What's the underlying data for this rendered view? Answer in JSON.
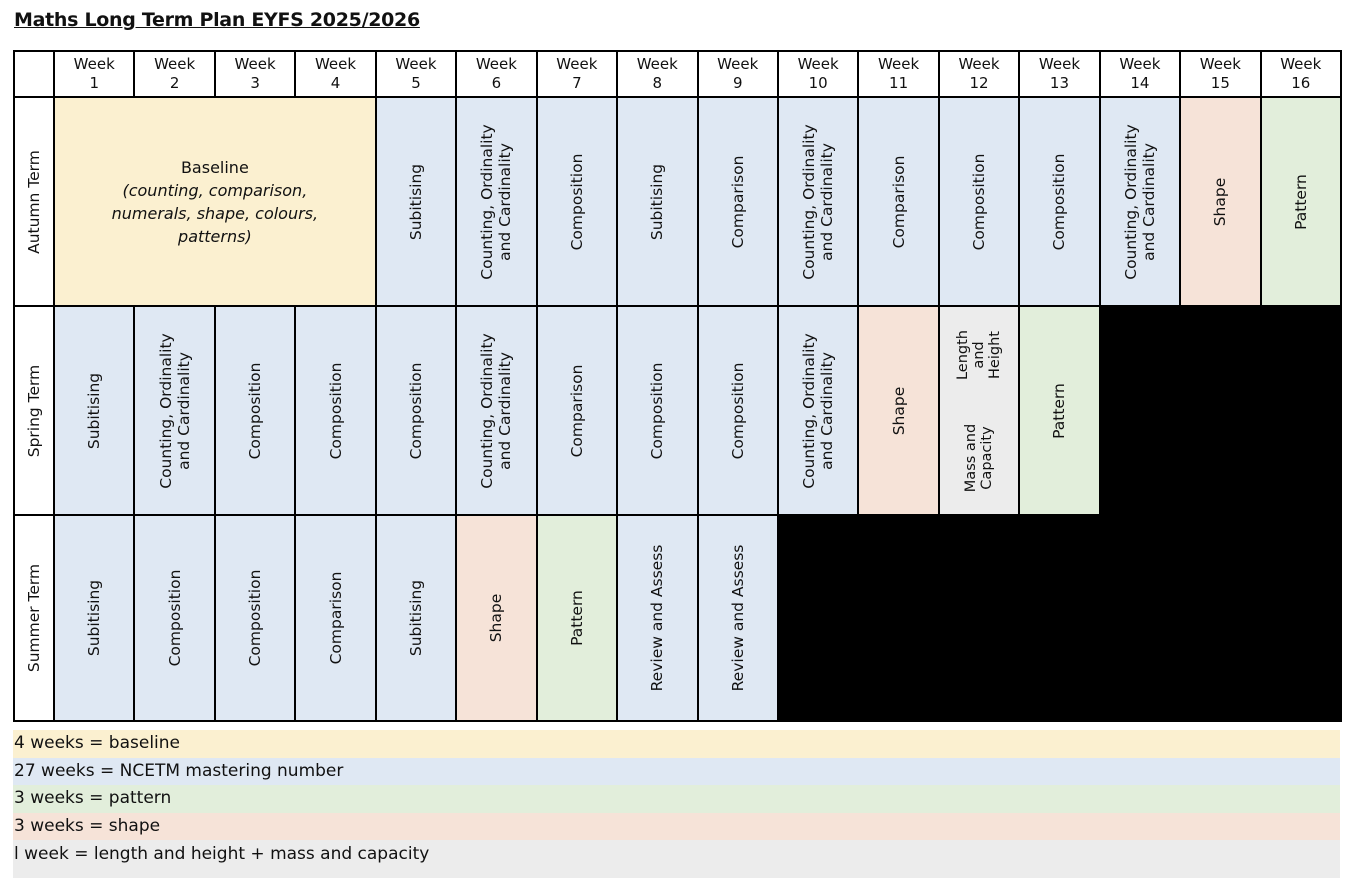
{
  "title": "Maths Long Term Plan EYFS 2025/2026",
  "weeks": [
    "Week 1",
    "Week 2",
    "Week 3",
    "Week 4",
    "Week 5",
    "Week 6",
    "Week 7",
    "Week 8",
    "Week 9",
    "Week 10",
    "Week 11",
    "Week 12",
    "Week 13",
    "Week 14",
    "Week 15",
    "Week 16"
  ],
  "week_word": "Week",
  "week_numbers": [
    "1",
    "2",
    "3",
    "4",
    "5",
    "6",
    "7",
    "8",
    "9",
    "10",
    "11",
    "12",
    "13",
    "14",
    "15",
    "16"
  ],
  "colors": {
    "baseline": "#fbf0d0",
    "number": "#dfe8f3",
    "pattern": "#e2eedb",
    "shape": "#f6e3d8",
    "measure": "#ececec",
    "unused": "#000000"
  },
  "terms": [
    {
      "label": "Autumn Term",
      "baseline": {
        "heading": "Baseline",
        "detail_line1": "(counting, comparison,",
        "detail_line2": "numerals, shape, colours,",
        "detail_line3": "patterns)"
      },
      "cells": [
        {
          "week": 5,
          "line1": "Subitising",
          "category": "number"
        },
        {
          "week": 6,
          "line1": "Counting, Ordinality",
          "line2": "and Cardinality",
          "category": "number"
        },
        {
          "week": 7,
          "line1": "Composition",
          "category": "number"
        },
        {
          "week": 8,
          "line1": "Subitising",
          "category": "number"
        },
        {
          "week": 9,
          "line1": "Comparison",
          "category": "number"
        },
        {
          "week": 10,
          "line1": "Counting, Ordinality",
          "line2": "and Cardinality",
          "category": "number"
        },
        {
          "week": 11,
          "line1": "Comparison",
          "category": "number"
        },
        {
          "week": 12,
          "line1": "Composition",
          "category": "number"
        },
        {
          "week": 13,
          "line1": "Composition",
          "category": "number"
        },
        {
          "week": 14,
          "line1": "Counting, Ordinality",
          "line2": "and Cardinality",
          "category": "number"
        },
        {
          "week": 15,
          "line1": "Shape",
          "category": "shape"
        },
        {
          "week": 16,
          "line1": "Pattern",
          "category": "pattern"
        }
      ]
    },
    {
      "label": "Spring Term",
      "cells": [
        {
          "week": 1,
          "line1": "Subitising",
          "category": "number"
        },
        {
          "week": 2,
          "line1": "Counting, Ordinality",
          "line2": "and Cardinality",
          "category": "number"
        },
        {
          "week": 3,
          "line1": "Composition",
          "category": "number"
        },
        {
          "week": 4,
          "line1": "Composition",
          "category": "number"
        },
        {
          "week": 5,
          "line1": "Composition",
          "category": "number"
        },
        {
          "week": 6,
          "line1": "Counting, Ordinality",
          "line2": "and Cardinality",
          "category": "number"
        },
        {
          "week": 7,
          "line1": "Comparison",
          "category": "number"
        },
        {
          "week": 8,
          "line1": "Composition",
          "category": "number"
        },
        {
          "week": 9,
          "line1": "Composition",
          "category": "number"
        },
        {
          "week": 10,
          "line1": "Counting, Ordinality",
          "line2": "and Cardinality",
          "category": "number"
        },
        {
          "week": 11,
          "line1": "Shape",
          "category": "shape"
        },
        {
          "week": 12,
          "category": "measure",
          "top_line1": "Length",
          "top_line2": "and",
          "top_line3": "Height",
          "bottom_line1": "Mass and",
          "bottom_line2": "Capacity"
        },
        {
          "week": 13,
          "line1": "Pattern",
          "category": "pattern"
        }
      ]
    },
    {
      "label": "Summer Term",
      "cells": [
        {
          "week": 1,
          "line1": "Subitising",
          "category": "number"
        },
        {
          "week": 2,
          "line1": "Composition",
          "category": "number"
        },
        {
          "week": 3,
          "line1": "Composition",
          "category": "number"
        },
        {
          "week": 4,
          "line1": "Comparison",
          "category": "number"
        },
        {
          "week": 5,
          "line1": "Subitising",
          "category": "number"
        },
        {
          "week": 6,
          "line1": "Shape",
          "category": "shape"
        },
        {
          "week": 7,
          "line1": "Pattern",
          "category": "pattern"
        },
        {
          "week": 8,
          "line1": "Review and Assess",
          "category": "number"
        },
        {
          "week": 9,
          "line1": "Review and Assess",
          "category": "number"
        }
      ]
    }
  ],
  "legend": [
    {
      "text": "4 weeks = baseline",
      "category": "baseline"
    },
    {
      "text": "27 weeks = NCETM mastering number",
      "category": "number"
    },
    {
      "text": "3 weeks = pattern",
      "category": "pattern"
    },
    {
      "text": "3 weeks = shape",
      "category": "shape"
    },
    {
      "text": "l week = length and height + mass and capacity",
      "category": "measure"
    }
  ]
}
